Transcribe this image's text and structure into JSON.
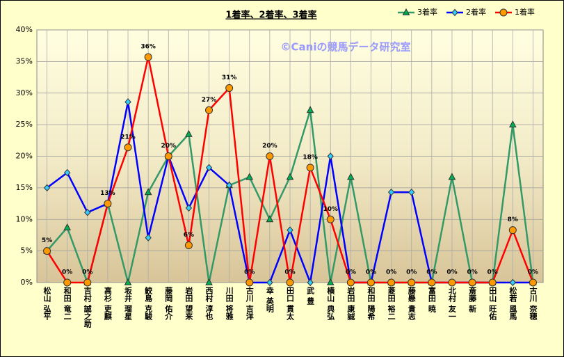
{
  "chart_data": {
    "type": "line",
    "title": "1着率、2着率、3着率",
    "annotation": "©Caniの競馬データ研究室",
    "categories": [
      "松山 弘平",
      "和田 竜二",
      "吉村 誠之助",
      "高杉 吏麒",
      "坂井 瑠星",
      "鮫島 克駿",
      "藤岡 佑介",
      "岩田 望来",
      "西村 淳也",
      "川田 将雅",
      "古川 吉洋",
      "幸 英明",
      "田口 貫太",
      "武 豊",
      "横山 典弘",
      "岩田 康誠",
      "和田 陽希",
      "菱田 裕二",
      "藤懸 貴志",
      "富田 暁",
      "北村 友一",
      "斎藤 新",
      "田山 旺佑",
      "松若 風馬",
      "古川 奈穂"
    ],
    "series": [
      {
        "name": "3着率",
        "color": "#339966",
        "marker": "triangle",
        "marker_color": "#00b050",
        "values": [
          5,
          8.7,
          0,
          12.5,
          0,
          14.3,
          20,
          23.5,
          0,
          15.4,
          16.7,
          10,
          16.7,
          27.3,
          0,
          16.7,
          0,
          0,
          0,
          0,
          16.7,
          0,
          0,
          25,
          0
        ]
      },
      {
        "name": "2着率",
        "color": "#0000ff",
        "marker": "diamond",
        "marker_color": "#33ccff",
        "values": [
          15,
          17.4,
          11.1,
          12.5,
          28.6,
          7.1,
          20,
          11.8,
          18.2,
          15.4,
          0,
          0,
          8.3,
          0,
          20,
          0,
          0,
          14.3,
          14.3,
          0,
          0,
          0,
          0,
          0,
          0
        ]
      },
      {
        "name": "1着率",
        "color": "#ff0000",
        "marker": "circle",
        "marker_color": "#ff9900",
        "values": [
          5,
          0,
          0,
          12.5,
          21.4,
          35.7,
          20,
          5.9,
          27.3,
          30.8,
          0,
          20,
          0,
          18.2,
          10,
          0,
          0,
          0,
          0,
          0,
          0,
          0,
          0,
          8.3,
          0
        ],
        "value_labels": [
          "5%",
          "0%",
          "0%",
          "13%",
          "21%",
          "36%",
          "20%",
          "6%",
          "27%",
          "31%",
          "0%",
          "20%",
          "0%",
          "18%",
          "10%",
          "0%",
          "0%",
          "0%",
          "0%",
          "0%",
          "0%",
          "0%",
          "0%",
          "8%",
          "0%"
        ]
      }
    ],
    "ylim": [
      0,
      40
    ],
    "yticks": [
      {
        "value": 0,
        "label": "0%"
      },
      {
        "value": 5,
        "label": "5%"
      },
      {
        "value": 10,
        "label": "10%"
      },
      {
        "value": 15,
        "label": "15%"
      },
      {
        "value": 20,
        "label": "20%"
      },
      {
        "value": 25,
        "label": "25%"
      },
      {
        "value": 30,
        "label": "30%"
      },
      {
        "value": 35,
        "label": "35%"
      },
      {
        "value": 40,
        "label": "40%"
      }
    ],
    "grid": true,
    "legend": "top-right"
  }
}
